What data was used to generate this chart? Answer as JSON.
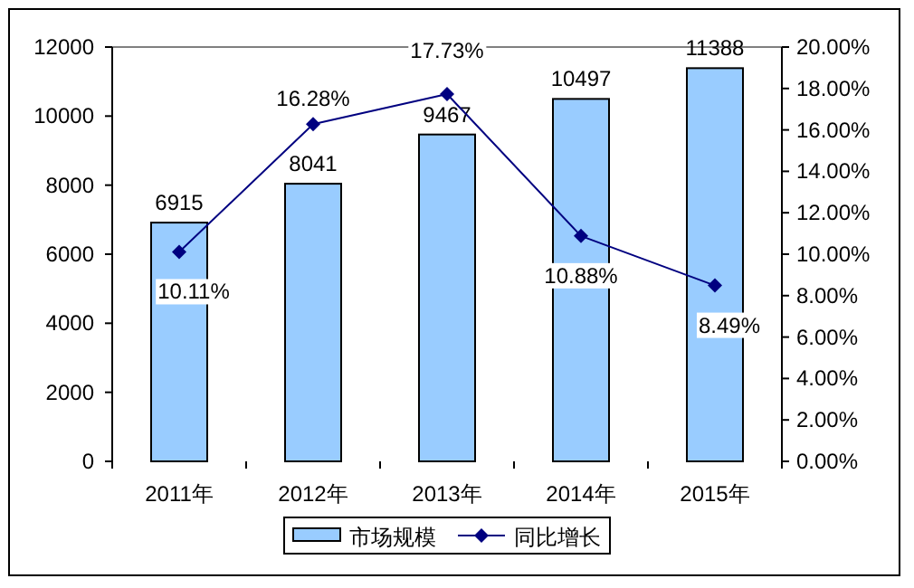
{
  "chart_data": {
    "type": "bar",
    "categories": [
      "2011年",
      "2012年",
      "2013年",
      "2014年",
      "2015年"
    ],
    "series": [
      {
        "name": "市场规模",
        "color": "#99ccff",
        "values": [
          6915,
          8041,
          9467,
          10497,
          11388
        ],
        "value_labels": [
          "6915",
          "8041",
          "9467",
          "10497",
          "11388"
        ]
      },
      {
        "name": "同比增长",
        "type": "line",
        "axis": "y2",
        "color": "#000080",
        "marker": "diamond",
        "values": [
          10.11,
          16.28,
          17.73,
          10.88,
          8.49
        ],
        "value_labels": [
          "10.11%",
          "16.28%",
          "17.73%",
          "10.88%",
          "8.49%"
        ]
      }
    ],
    "ylim": [
      0,
      12000
    ],
    "yticks": [
      0,
      2000,
      4000,
      6000,
      8000,
      10000,
      12000
    ],
    "y2lim": [
      0,
      20
    ],
    "y2ticks": [
      {
        "value": 0,
        "label": "0.00%"
      },
      {
        "value": 2,
        "label": "2.00%"
      },
      {
        "value": 4,
        "label": "4.00%"
      },
      {
        "value": 6,
        "label": "6.00%"
      },
      {
        "value": 8,
        "label": "8.00%"
      },
      {
        "value": 10,
        "label": "10.00%"
      },
      {
        "value": 12,
        "label": "12.00%"
      },
      {
        "value": 14,
        "label": "14.00%"
      },
      {
        "value": 16,
        "label": "16.00%"
      },
      {
        "value": 18,
        "label": "18.00%"
      },
      {
        "value": 20,
        "label": "20.00%"
      }
    ],
    "legend": "bottom"
  }
}
